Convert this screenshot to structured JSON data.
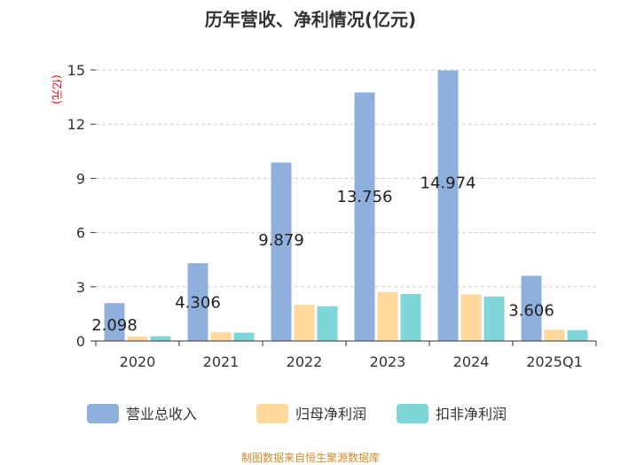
{
  "chart_data": {
    "type": "bar",
    "title": "历年营收、净利情况(亿元)",
    "ylabel": "(亿元)",
    "xlabel": "",
    "ylim": [
      0,
      15
    ],
    "yticks": [
      0,
      3,
      6,
      9,
      12,
      15
    ],
    "categories": [
      "2020",
      "2021",
      "2022",
      "2023",
      "2024",
      "2025Q1"
    ],
    "series": [
      {
        "name": "营业总收入",
        "color": "#8fb0dc",
        "values": [
          2.098,
          4.306,
          9.879,
          13.756,
          14.974,
          3.606
        ],
        "labels": [
          "2.098",
          "4.306",
          "9.879",
          "13.756",
          "14.974",
          "3.606"
        ]
      },
      {
        "name": "归母净利润",
        "color": "#fed99b",
        "values": [
          0.25,
          0.48,
          2.0,
          2.72,
          2.58,
          0.62
        ]
      },
      {
        "name": "扣非净利润",
        "color": "#7fd6d8",
        "values": [
          0.27,
          0.46,
          1.92,
          2.6,
          2.46,
          0.6
        ]
      }
    ],
    "grid": "horizontal",
    "legend": "bottom"
  },
  "source": "制图数据来自恒生聚源数据库"
}
